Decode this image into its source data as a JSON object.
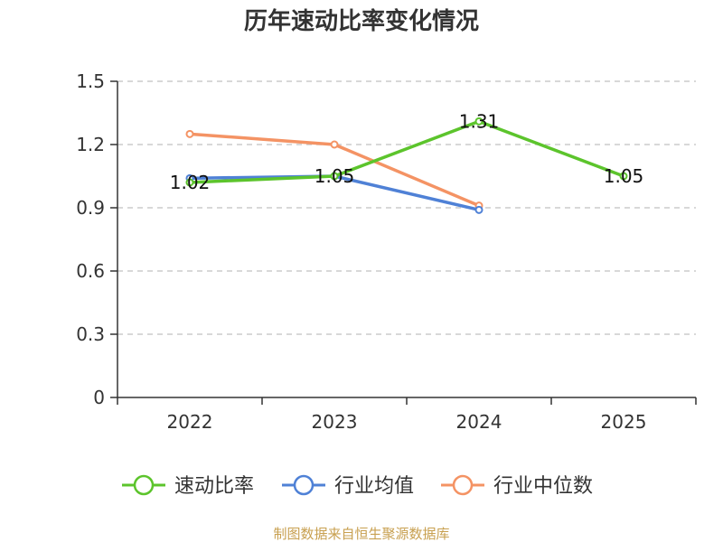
{
  "chart_data": {
    "type": "line",
    "title": "历年速动比率变化情况",
    "categories": [
      "2022",
      "2023",
      "2024",
      "2025"
    ],
    "ylim": [
      0,
      1.5
    ],
    "yticks": [
      "0",
      "0.3",
      "0.6",
      "0.9",
      "1.2",
      "1.5"
    ],
    "series": [
      {
        "name": "速动比率",
        "color": "#5cc42c",
        "values": [
          1.02,
          1.05,
          1.31,
          1.05
        ],
        "labels": [
          "1.02",
          "1.05",
          "1.31",
          "1.05"
        ]
      },
      {
        "name": "行业均值",
        "color": "#4f81d6",
        "values": [
          1.04,
          1.05,
          0.89,
          null
        ]
      },
      {
        "name": "行业中位数",
        "color": "#f49364",
        "values": [
          1.25,
          1.2,
          0.91,
          null
        ]
      }
    ],
    "source": "制图数据来自恒生聚源数据库"
  }
}
